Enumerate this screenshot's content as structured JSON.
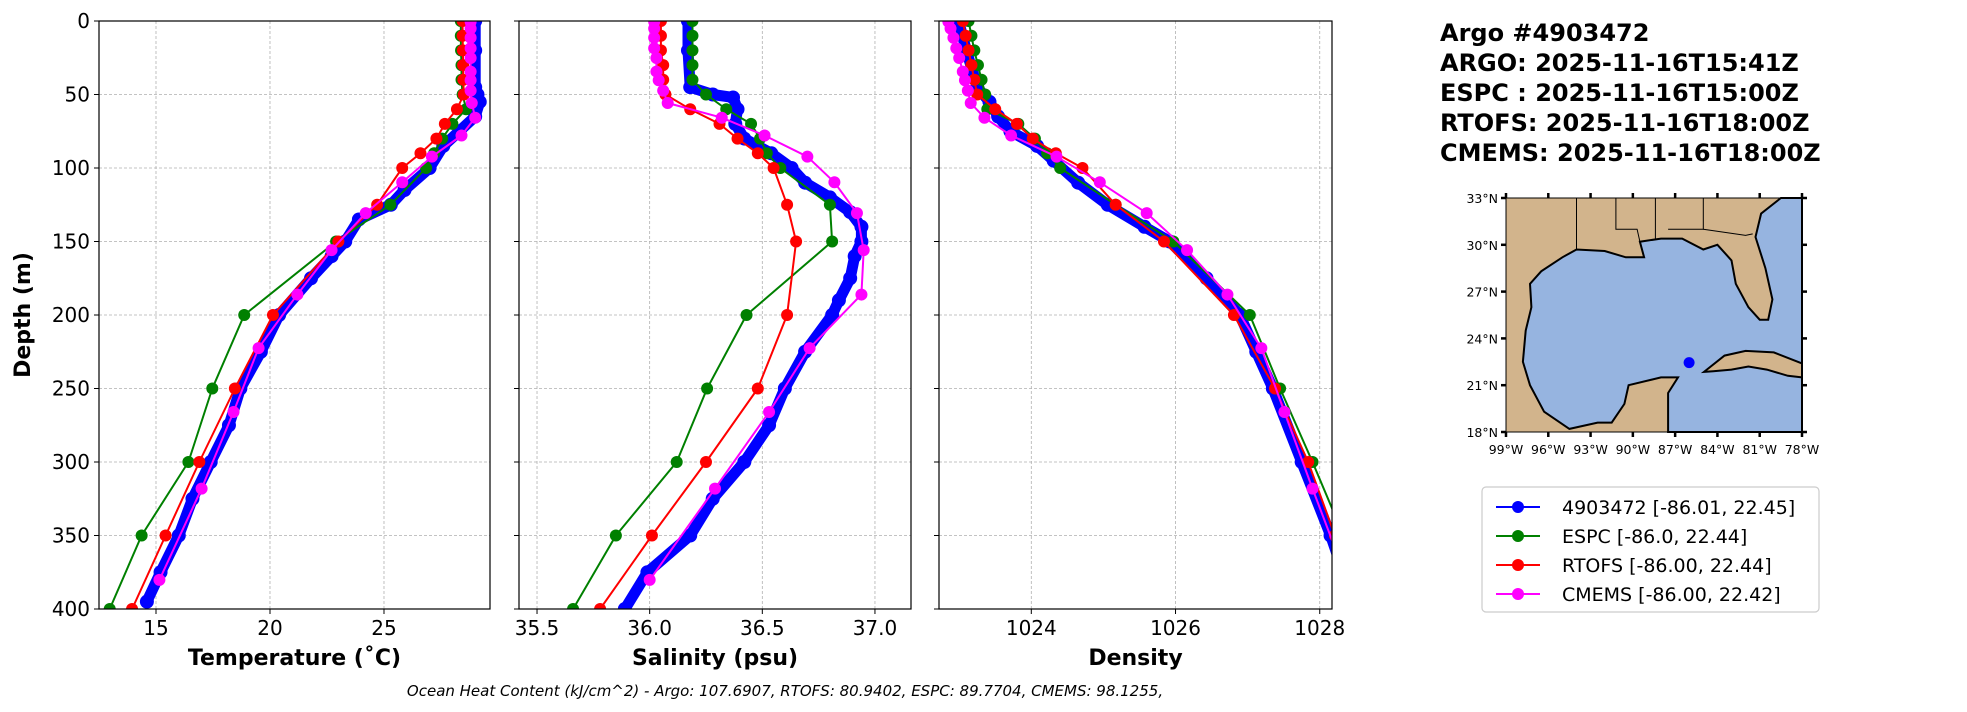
{
  "title_lines": [
    "Argo #4903472",
    "ARGO: 2025-11-16T15:41Z",
    "ESPC : 2025-11-16T15:00Z",
    "RTOFS: 2025-11-16T18:00Z",
    "CMEMS: 2025-11-16T18:00Z"
  ],
  "footer": "Ocean Heat Content (kJ/cm^2) - Argo: 107.6907,  RTOFS: 80.9402,  ESPC: 89.7704,  CMEMS: 98.1255,",
  "colors": {
    "argo": "#0000ff",
    "espc": "#008000",
    "rtofs": "#ff0000",
    "cmems": "#ff00ff",
    "land": "#d2b48c",
    "ocean": "#96b4e0"
  },
  "legend": [
    {
      "label": "4903472 [-86.01, 22.45]",
      "series": "argo"
    },
    {
      "label": "ESPC [-86.0, 22.44]",
      "series": "espc"
    },
    {
      "label": "RTOFS [-86.00, 22.44]",
      "series": "rtofs"
    },
    {
      "label": "CMEMS [-86.00, 22.42]",
      "series": "cmems"
    }
  ],
  "map": {
    "lat_ticks": [
      "33°N",
      "30°N",
      "27°N",
      "24°N",
      "21°N",
      "18°N"
    ],
    "lon_ticks": [
      "99°W",
      "96°W",
      "93°W",
      "90°W",
      "87°W",
      "84°W",
      "81°W",
      "78°W"
    ],
    "lon_range": [
      -99,
      -78
    ],
    "lat_range": [
      18,
      33
    ],
    "float_position": {
      "lon": -86.01,
      "lat": 22.45
    }
  },
  "chart_data": [
    {
      "type": "line",
      "id": "temperature",
      "xlabel": "Temperature (˚C)",
      "ylabel": "Depth (m)",
      "xlim": [
        12.5,
        29.65
      ],
      "ylim": [
        400,
        0
      ],
      "xticks": [
        15,
        20,
        25
      ],
      "yticks": [
        0,
        50,
        100,
        150,
        200,
        250,
        300,
        350,
        400
      ],
      "grid": true,
      "series": {
        "argo": {
          "depth": [
            0,
            20,
            45,
            50,
            55,
            65,
            75,
            85,
            100,
            115,
            125,
            135,
            150,
            160,
            175,
            200,
            225,
            250,
            275,
            300,
            325,
            350,
            375,
            395
          ],
          "values": [
            29.0,
            29.0,
            29.0,
            29.1,
            29.2,
            29.0,
            28.3,
            27.6,
            27.0,
            25.9,
            25.3,
            23.9,
            23.3,
            22.7,
            21.8,
            20.4,
            19.6,
            18.7,
            18.2,
            17.4,
            16.6,
            16.0,
            15.2,
            14.6
          ]
        },
        "espc": {
          "depth": [
            0,
            10,
            20,
            30,
            40,
            50,
            60,
            70,
            80,
            90,
            100,
            125,
            150,
            200,
            250,
            300,
            350,
            400
          ],
          "values": [
            28.37,
            28.37,
            28.38,
            28.4,
            28.4,
            28.45,
            28.6,
            28.0,
            27.55,
            27.2,
            26.85,
            25.28,
            22.9,
            18.87,
            17.47,
            16.42,
            14.37,
            12.97
          ]
        },
        "rtofs": {
          "depth": [
            0,
            10,
            20,
            30,
            40,
            50,
            60,
            70,
            80,
            90,
            100,
            125,
            150,
            200,
            250,
            300,
            350,
            400
          ],
          "values": [
            28.45,
            28.45,
            28.46,
            28.47,
            28.48,
            28.5,
            28.2,
            27.67,
            27.3,
            26.6,
            25.8,
            24.7,
            23.0,
            20.13,
            18.46,
            16.9,
            15.42,
            13.95
          ]
        },
        "cmems": {
          "depth": [
            0.5,
            5.1,
            11.4,
            18.5,
            25.2,
            34.4,
            40.3,
            47.4,
            55.8,
            65.8,
            77.9,
            92.3,
            109.7,
            130.7,
            155.9,
            186.1,
            222.5,
            266.0,
            318.1,
            380.2
          ],
          "values": [
            28.8,
            28.8,
            28.8,
            28.8,
            28.8,
            28.8,
            28.8,
            28.8,
            28.85,
            29.0,
            28.4,
            27.1,
            25.8,
            24.2,
            22.7,
            21.2,
            19.5,
            18.4,
            17.0,
            15.15
          ]
        }
      }
    },
    {
      "type": "line",
      "id": "salinity",
      "xlabel": "Salinity (psu)",
      "ylabel": "Depth (m)",
      "xlim": [
        35.42,
        37.16
      ],
      "ylim": [
        400,
        0
      ],
      "xticks": [
        "35.5",
        "36.0",
        "36.5",
        "37.0"
      ],
      "yticks": [
        0,
        50,
        100,
        150,
        200,
        250,
        300,
        350,
        400
      ],
      "grid": true,
      "series": {
        "argo": {
          "depth": [
            0,
            20,
            45,
            50,
            52,
            60,
            70,
            80,
            90,
            100,
            110,
            120,
            130,
            140,
            150,
            160,
            175,
            190,
            200,
            225,
            250,
            275,
            300,
            325,
            350,
            375,
            400
          ],
          "values": [
            36.17,
            36.17,
            36.18,
            36.28,
            36.37,
            36.39,
            36.38,
            36.42,
            36.54,
            36.63,
            36.69,
            36.8,
            36.89,
            36.94,
            36.94,
            36.91,
            36.89,
            36.84,
            36.81,
            36.69,
            36.6,
            36.53,
            36.42,
            36.28,
            36.18,
            35.99,
            35.89
          ]
        },
        "espc": {
          "depth": [
            0,
            10,
            20,
            30,
            40,
            50,
            60,
            70,
            80,
            90,
            100,
            125,
            150,
            200,
            250,
            300,
            350,
            400
          ],
          "values": [
            36.19,
            36.19,
            36.19,
            36.19,
            36.19,
            36.25,
            36.34,
            36.45,
            36.49,
            36.52,
            36.58,
            36.8,
            36.81,
            36.43,
            36.255,
            36.12,
            35.85,
            35.66
          ]
        },
        "rtofs": {
          "depth": [
            0,
            10,
            20,
            30,
            40,
            50,
            60,
            70,
            80,
            90,
            100,
            125,
            150,
            200,
            250,
            300,
            350,
            400
          ],
          "values": [
            36.05,
            36.05,
            36.05,
            36.06,
            36.06,
            36.07,
            36.18,
            36.31,
            36.39,
            36.48,
            36.55,
            36.61,
            36.65,
            36.61,
            36.48,
            36.25,
            36.01,
            35.78
          ]
        },
        "cmems": {
          "depth": [
            0.5,
            5.1,
            11.4,
            18.5,
            25.2,
            34.4,
            40.3,
            47.4,
            55.8,
            65.8,
            77.9,
            92.3,
            109.7,
            130.7,
            155.9,
            186.1,
            222.5,
            266.0,
            318.1,
            380.2
          ],
          "values": [
            36.02,
            36.02,
            36.02,
            36.02,
            36.03,
            36.03,
            36.04,
            36.06,
            36.08,
            36.32,
            36.51,
            36.7,
            36.82,
            36.92,
            36.95,
            36.94,
            36.71,
            36.53,
            36.29,
            36.0
          ]
        }
      }
    },
    {
      "type": "line",
      "id": "density",
      "xlabel": "Density",
      "ylabel": "Depth (m)",
      "xlim": [
        1022.72,
        1028.17
      ],
      "ylim": [
        400,
        0
      ],
      "xticks": [
        1024,
        1026,
        1028
      ],
      "yticks": [
        0,
        50,
        100,
        150,
        200,
        250,
        300,
        350,
        400
      ],
      "grid": true,
      "series": {
        "argo": {
          "depth": [
            0,
            20,
            45,
            55,
            65,
            75,
            85,
            95,
            110,
            125,
            140,
            150,
            175,
            200,
            225,
            250,
            300,
            350,
            400
          ],
          "values": [
            1022.99,
            1023.1,
            1023.25,
            1023.42,
            1023.54,
            1023.71,
            1024.08,
            1024.31,
            1024.65,
            1025.06,
            1025.57,
            1025.92,
            1026.43,
            1026.89,
            1027.12,
            1027.35,
            1027.75,
            1028.15,
            1028.5
          ]
        },
        "espc": {
          "depth": [
            0,
            10,
            20,
            30,
            40,
            50,
            60,
            70,
            80,
            90,
            100,
            125,
            150,
            200,
            250,
            300,
            350,
            400
          ],
          "values": [
            1023.13,
            1023.17,
            1023.21,
            1023.26,
            1023.31,
            1023.36,
            1023.39,
            1023.82,
            1024.05,
            1024.22,
            1024.4,
            1025.17,
            1025.97,
            1027.03,
            1027.45,
            1027.9,
            1028.33,
            1028.7
          ]
        },
        "rtofs": {
          "depth": [
            0,
            10,
            20,
            30,
            40,
            50,
            60,
            70,
            80,
            90,
            100,
            125,
            150,
            200,
            250,
            300,
            350,
            400
          ],
          "values": [
            1023.05,
            1023.09,
            1023.13,
            1023.17,
            1023.21,
            1023.25,
            1023.5,
            1023.8,
            1024.02,
            1024.34,
            1024.71,
            1025.17,
            1025.84,
            1026.81,
            1027.38,
            1027.84,
            1028.21,
            1028.57
          ]
        },
        "cmems": {
          "depth": [
            0.5,
            5.1,
            11.4,
            18.5,
            25.2,
            34.4,
            40.3,
            47.4,
            55.8,
            65.8,
            77.9,
            92.3,
            109.7,
            130.7,
            155.9,
            186.1,
            222.5,
            266.0,
            318.1,
            380.2
          ],
          "values": [
            1022.85,
            1022.88,
            1022.92,
            1022.96,
            1023.0,
            1023.05,
            1023.08,
            1023.12,
            1023.16,
            1023.35,
            1023.72,
            1024.35,
            1024.95,
            1025.6,
            1026.16,
            1026.72,
            1027.19,
            1027.51,
            1027.9,
            1028.38
          ]
        }
      }
    }
  ]
}
